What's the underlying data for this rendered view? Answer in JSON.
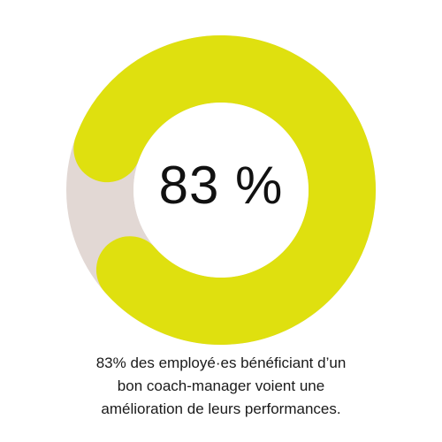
{
  "chart_data": {
    "type": "pie",
    "variant": "donut",
    "values": [
      83,
      17
    ],
    "center_label": "83 %",
    "colors": {
      "value": "#dfe00f",
      "remainder": "#e2d8d4"
    }
  },
  "caption": {
    "line1": "83% des employé·es bénéficiant d’un",
    "line2": "bon coach-manager voient une",
    "line3": "amélioration de leurs performances."
  }
}
